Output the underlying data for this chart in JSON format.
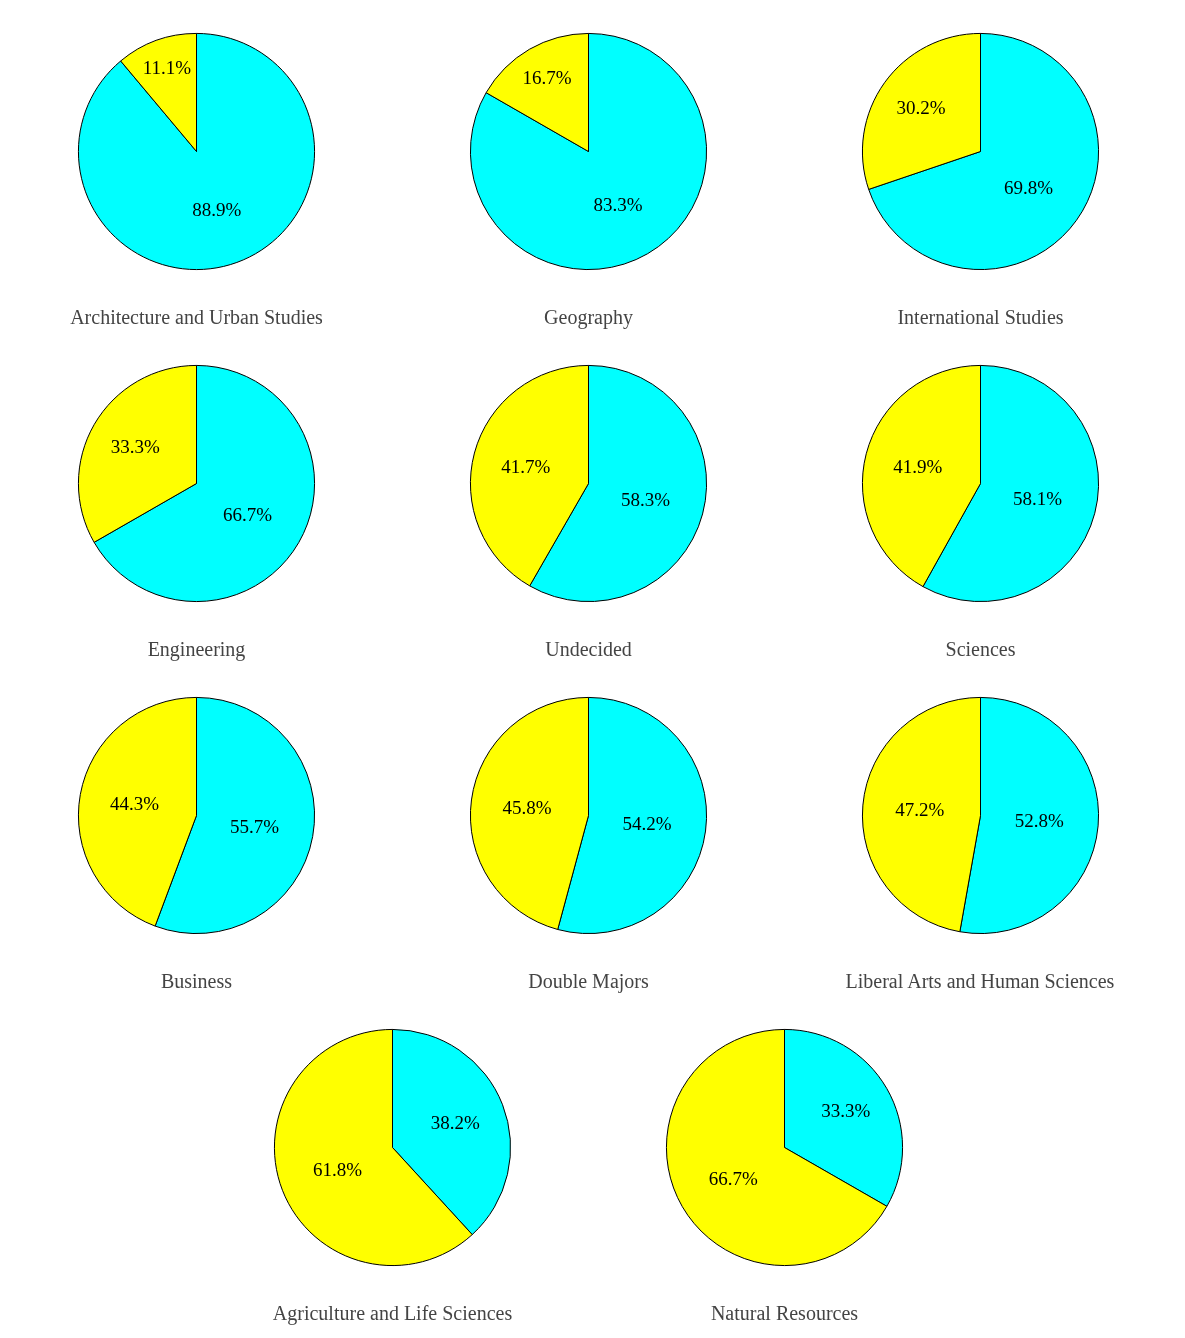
{
  "chart_data": [
    {
      "type": "pie",
      "title": "Architecture and Urban Studies",
      "categories": [
        null,
        null
      ],
      "values": [
        88.9,
        11.1
      ],
      "colors": [
        "#00ffff",
        "#ffff00"
      ],
      "value_labels": [
        "88.9%",
        "11.1%"
      ]
    },
    {
      "type": "pie",
      "title": "Geography",
      "categories": [
        null,
        null
      ],
      "values": [
        83.3,
        16.7
      ],
      "colors": [
        "#00ffff",
        "#ffff00"
      ],
      "value_labels": [
        "83.3%",
        "16.7%"
      ]
    },
    {
      "type": "pie",
      "title": "International Studies",
      "categories": [
        null,
        null
      ],
      "values": [
        69.8,
        30.2
      ],
      "colors": [
        "#00ffff",
        "#ffff00"
      ],
      "value_labels": [
        "69.8%",
        "30.2%"
      ]
    },
    {
      "type": "pie",
      "title": "Engineering",
      "categories": [
        null,
        null
      ],
      "values": [
        66.7,
        33.3
      ],
      "colors": [
        "#00ffff",
        "#ffff00"
      ],
      "value_labels": [
        "66.7%",
        "33.3%"
      ]
    },
    {
      "type": "pie",
      "title": "Undecided",
      "categories": [
        null,
        null
      ],
      "values": [
        58.3,
        41.7
      ],
      "colors": [
        "#00ffff",
        "#ffff00"
      ],
      "value_labels": [
        "58.3%",
        "41.7%"
      ]
    },
    {
      "type": "pie",
      "title": "Sciences",
      "categories": [
        null,
        null
      ],
      "values": [
        58.1,
        41.9
      ],
      "colors": [
        "#00ffff",
        "#ffff00"
      ],
      "value_labels": [
        "58.1%",
        "41.9%"
      ]
    },
    {
      "type": "pie",
      "title": "Business",
      "categories": [
        null,
        null
      ],
      "values": [
        55.7,
        44.3
      ],
      "colors": [
        "#00ffff",
        "#ffff00"
      ],
      "value_labels": [
        "55.7%",
        "44.3%"
      ]
    },
    {
      "type": "pie",
      "title": "Double Majors",
      "categories": [
        null,
        null
      ],
      "values": [
        54.2,
        45.8
      ],
      "colors": [
        "#00ffff",
        "#ffff00"
      ],
      "value_labels": [
        "54.2%",
        "45.8%"
      ]
    },
    {
      "type": "pie",
      "title": "Liberal Arts and Human Sciences",
      "categories": [
        null,
        null
      ],
      "values": [
        52.8,
        47.2
      ],
      "colors": [
        "#00ffff",
        "#ffff00"
      ],
      "value_labels": [
        "52.8%",
        "47.2%"
      ]
    },
    {
      "type": "pie",
      "title": "Agriculture and Life Sciences",
      "categories": [
        null,
        null
      ],
      "values": [
        38.2,
        61.8
      ],
      "colors": [
        "#00ffff",
        "#ffff00"
      ],
      "value_labels": [
        "38.2%",
        "61.8%"
      ]
    },
    {
      "type": "pie",
      "title": "Natural Resources",
      "categories": [
        null,
        null
      ],
      "values": [
        33.3,
        66.7
      ],
      "colors": [
        "#00ffff",
        "#ffff00"
      ],
      "value_labels": [
        "33.3%",
        "66.7%"
      ]
    }
  ]
}
